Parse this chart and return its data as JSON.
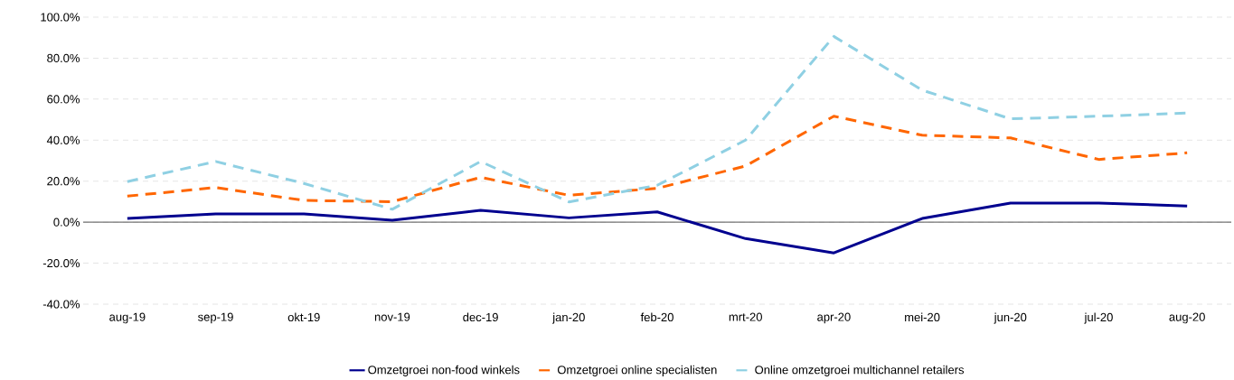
{
  "chart_data": {
    "type": "line",
    "categories": [
      "aug-19",
      "sep-19",
      "okt-19",
      "nov-19",
      "dec-19",
      "jan-20",
      "feb-20",
      "mrt-20",
      "apr-20",
      "mei-20",
      "jun-20",
      "jul-20",
      "aug-20"
    ],
    "series": [
      {
        "name": "Omzetgroei non-food winkels",
        "color": "#00008f",
        "line_style": "solid",
        "values": [
          1.8,
          4.0,
          4.0,
          0.9,
          5.8,
          2.1,
          5.0,
          -8.0,
          -15.0,
          1.8,
          9.3,
          9.3,
          7.9
        ]
      },
      {
        "name": "Omzetgroei online specialisten",
        "color": "#ff6600",
        "line_style": "dashed",
        "values": [
          12.7,
          16.9,
          10.6,
          10.0,
          21.9,
          13.1,
          16.5,
          27.4,
          51.7,
          42.4,
          41.1,
          30.6,
          33.8
        ]
      },
      {
        "name": "Online omzetgroei multichannel retailers",
        "color": "#8fd0e3",
        "line_style": "dashed",
        "values": [
          19.8,
          29.6,
          18.9,
          6.3,
          29.6,
          9.9,
          18.0,
          40.0,
          90.6,
          64.4,
          50.4,
          51.7,
          53.2
        ]
      }
    ],
    "ylim": [
      -40,
      100
    ],
    "yticks": [
      {
        "value": -40,
        "label": "-40.0%"
      },
      {
        "value": -20,
        "label": "-20.0%"
      },
      {
        "value": 0,
        "label": "0.0%"
      },
      {
        "value": 20,
        "label": "20.0%"
      },
      {
        "value": 40,
        "label": "40.0%"
      },
      {
        "value": 60,
        "label": "60.0%"
      },
      {
        "value": 80,
        "label": "80.0%"
      },
      {
        "value": 100,
        "label": "100.0%"
      }
    ],
    "grid": "y",
    "legend": "bottom",
    "marker": "none"
  }
}
